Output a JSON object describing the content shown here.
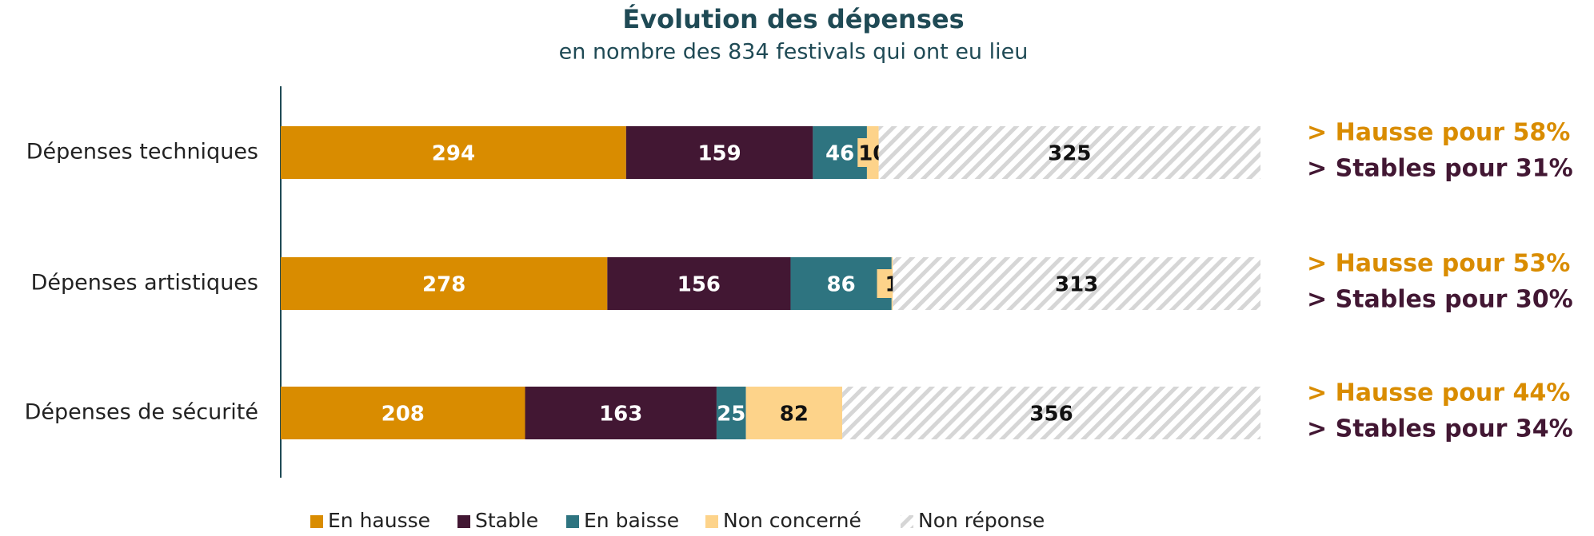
{
  "chart_data": {
    "type": "stacked-barh",
    "title": "Évolution des dépenses",
    "subtitle": "en nombre des 834 festivals qui ont eu lieu",
    "categories": [
      "Dépenses techniques",
      "Dépenses artistiques",
      "Dépenses de sécurité"
    ],
    "xlim": [
      0,
      834
    ],
    "series": [
      {
        "name": "En hausse",
        "color": "#d98c00",
        "label_color": "#ffffff",
        "values": [
          294,
          278,
          208
        ]
      },
      {
        "name": "Stable",
        "color": "#421733",
        "label_color": "#ffffff",
        "values": [
          159,
          156,
          163
        ]
      },
      {
        "name": "En baisse",
        "color": "#2e7480",
        "label_color": "#ffffff",
        "values": [
          46,
          86,
          25
        ]
      },
      {
        "name": "Non concerné",
        "color": "#fdd38a",
        "label_color": "#111111",
        "values": [
          10,
          1,
          82
        ]
      },
      {
        "name": "Non réponse",
        "color": "#d6d6d6",
        "hatch": true,
        "label_color": "#111111",
        "values": [
          325,
          313,
          356
        ]
      }
    ],
    "annotations": [
      [
        {
          "text": "> Hausse pour 58%",
          "color": "#d98c00"
        },
        {
          "text": "> Stables pour 31%",
          "color": "#421733"
        }
      ],
      [
        {
          "text": "> Hausse pour 53%",
          "color": "#d98c00"
        },
        {
          "text": "> Stables pour 30%",
          "color": "#421733"
        }
      ],
      [
        {
          "text": "> Hausse pour 44%",
          "color": "#d98c00"
        },
        {
          "text": "> Stables pour 34%",
          "color": "#421733"
        }
      ]
    ]
  }
}
